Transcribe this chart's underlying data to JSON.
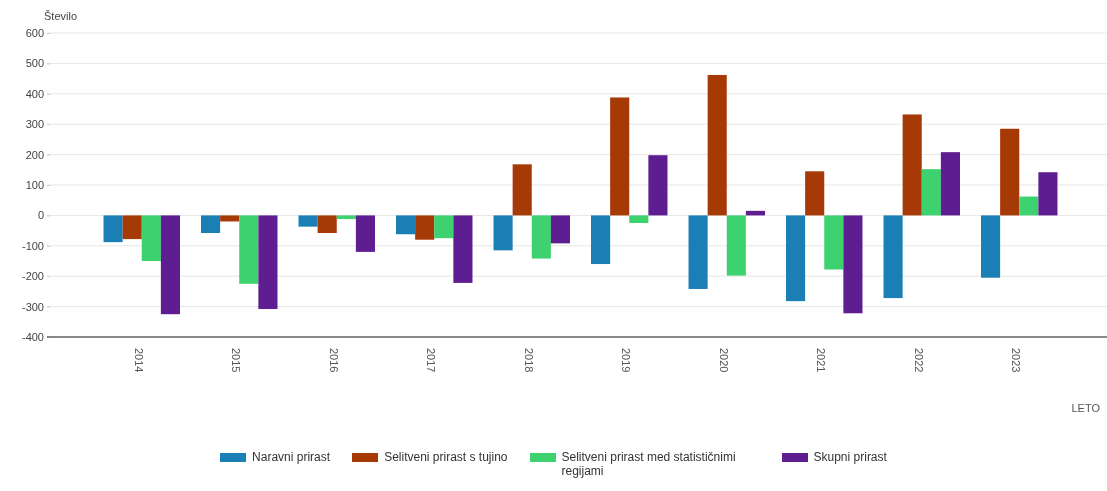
{
  "chart_data": {
    "type": "bar",
    "ylabel": "Število",
    "xlabel": "LETO",
    "categories": [
      "2014",
      "2015",
      "2016",
      "2017",
      "2018",
      "2019",
      "2020",
      "2021",
      "2022",
      "2023"
    ],
    "series": [
      {
        "name": "Naravni prirast",
        "color": "#1a7fb5",
        "values": [
          -88,
          -58,
          -37,
          -62,
          -115,
          -160,
          -242,
          -282,
          -272,
          -205
        ]
      },
      {
        "name": "Selitveni prirast s tujino",
        "color": "#a63a06",
        "values": [
          -78,
          -20,
          -58,
          -80,
          168,
          388,
          462,
          145,
          332,
          285
        ]
      },
      {
        "name": "Selitveni prirast med statističnimi regijami",
        "color": "#3dd16f",
        "values": [
          -150,
          -225,
          -12,
          -75,
          -142,
          -25,
          -198,
          -178,
          152,
          62
        ]
      },
      {
        "name": "Skupni prirast",
        "color": "#5e1d91",
        "values": [
          -325,
          -308,
          -120,
          -222,
          -92,
          198,
          15,
          -322,
          208,
          142
        ]
      }
    ],
    "ylim": [
      -400,
      600
    ],
    "yticks": [
      -400,
      -300,
      -200,
      -100,
      0,
      100,
      200,
      300,
      400,
      500,
      600
    ],
    "grid": "y",
    "legend": "bottom"
  }
}
